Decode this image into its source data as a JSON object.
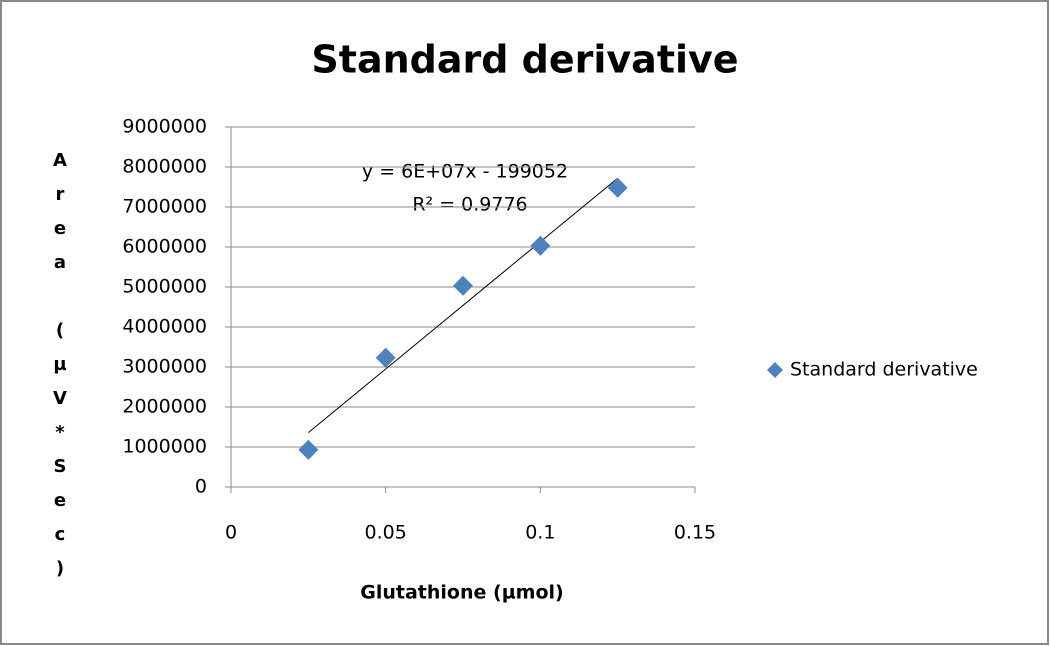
{
  "chart_data": {
    "type": "scatter",
    "title": "Standard derivative",
    "x_label": "Glutathione (µmol)",
    "y_label": "Area (µV*Sec)",
    "series": [
      {
        "name": "Standard derivative",
        "color": "#4f81bd",
        "x": [
          0.025,
          0.05,
          0.075,
          0.1,
          0.125
        ],
        "values": [
          930000,
          3230000,
          5030000,
          6030000,
          7480000
        ]
      }
    ],
    "trendline": {
      "equation": "y = 6E+07x - 199052",
      "r_squared": "R² = 0.9776"
    },
    "xlim": [
      0,
      0.15
    ],
    "xticks": [
      0,
      0.05,
      0.1,
      0.15
    ],
    "ylim": [
      0,
      9000000
    ],
    "yticks": [
      0,
      1000000,
      2000000,
      3000000,
      4000000,
      5000000,
      6000000,
      7000000,
      8000000,
      9000000
    ],
    "grid": true,
    "legend": "right"
  }
}
